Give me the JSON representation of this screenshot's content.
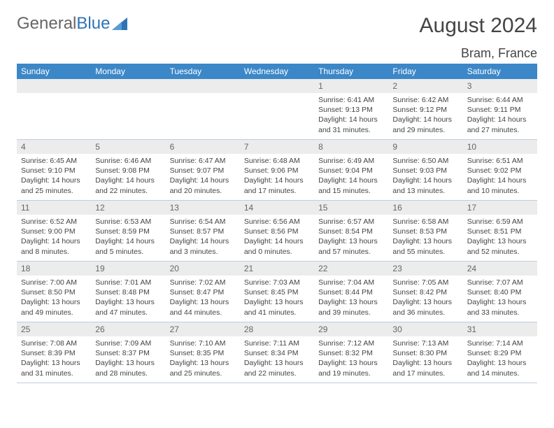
{
  "brand": {
    "part1": "General",
    "part2": "Blue",
    "tri_color": "#2e74b5"
  },
  "title": "August 2024",
  "location": "Bram, France",
  "colors": {
    "header_bg": "#3b87c8",
    "daynum_bg": "#ececec",
    "row_border": "#bfcde0"
  },
  "weekdays": [
    "Sunday",
    "Monday",
    "Tuesday",
    "Wednesday",
    "Thursday",
    "Friday",
    "Saturday"
  ],
  "leading_blanks": 4,
  "days": [
    {
      "n": 1,
      "sr": "6:41 AM",
      "ss": "9:13 PM",
      "dl": "14 hours and 31 minutes."
    },
    {
      "n": 2,
      "sr": "6:42 AM",
      "ss": "9:12 PM",
      "dl": "14 hours and 29 minutes."
    },
    {
      "n": 3,
      "sr": "6:44 AM",
      "ss": "9:11 PM",
      "dl": "14 hours and 27 minutes."
    },
    {
      "n": 4,
      "sr": "6:45 AM",
      "ss": "9:10 PM",
      "dl": "14 hours and 25 minutes."
    },
    {
      "n": 5,
      "sr": "6:46 AM",
      "ss": "9:08 PM",
      "dl": "14 hours and 22 minutes."
    },
    {
      "n": 6,
      "sr": "6:47 AM",
      "ss": "9:07 PM",
      "dl": "14 hours and 20 minutes."
    },
    {
      "n": 7,
      "sr": "6:48 AM",
      "ss": "9:06 PM",
      "dl": "14 hours and 17 minutes."
    },
    {
      "n": 8,
      "sr": "6:49 AM",
      "ss": "9:04 PM",
      "dl": "14 hours and 15 minutes."
    },
    {
      "n": 9,
      "sr": "6:50 AM",
      "ss": "9:03 PM",
      "dl": "14 hours and 13 minutes."
    },
    {
      "n": 10,
      "sr": "6:51 AM",
      "ss": "9:02 PM",
      "dl": "14 hours and 10 minutes."
    },
    {
      "n": 11,
      "sr": "6:52 AM",
      "ss": "9:00 PM",
      "dl": "14 hours and 8 minutes."
    },
    {
      "n": 12,
      "sr": "6:53 AM",
      "ss": "8:59 PM",
      "dl": "14 hours and 5 minutes."
    },
    {
      "n": 13,
      "sr": "6:54 AM",
      "ss": "8:57 PM",
      "dl": "14 hours and 3 minutes."
    },
    {
      "n": 14,
      "sr": "6:56 AM",
      "ss": "8:56 PM",
      "dl": "14 hours and 0 minutes."
    },
    {
      "n": 15,
      "sr": "6:57 AM",
      "ss": "8:54 PM",
      "dl": "13 hours and 57 minutes."
    },
    {
      "n": 16,
      "sr": "6:58 AM",
      "ss": "8:53 PM",
      "dl": "13 hours and 55 minutes."
    },
    {
      "n": 17,
      "sr": "6:59 AM",
      "ss": "8:51 PM",
      "dl": "13 hours and 52 minutes."
    },
    {
      "n": 18,
      "sr": "7:00 AM",
      "ss": "8:50 PM",
      "dl": "13 hours and 49 minutes."
    },
    {
      "n": 19,
      "sr": "7:01 AM",
      "ss": "8:48 PM",
      "dl": "13 hours and 47 minutes."
    },
    {
      "n": 20,
      "sr": "7:02 AM",
      "ss": "8:47 PM",
      "dl": "13 hours and 44 minutes."
    },
    {
      "n": 21,
      "sr": "7:03 AM",
      "ss": "8:45 PM",
      "dl": "13 hours and 41 minutes."
    },
    {
      "n": 22,
      "sr": "7:04 AM",
      "ss": "8:44 PM",
      "dl": "13 hours and 39 minutes."
    },
    {
      "n": 23,
      "sr": "7:05 AM",
      "ss": "8:42 PM",
      "dl": "13 hours and 36 minutes."
    },
    {
      "n": 24,
      "sr": "7:07 AM",
      "ss": "8:40 PM",
      "dl": "13 hours and 33 minutes."
    },
    {
      "n": 25,
      "sr": "7:08 AM",
      "ss": "8:39 PM",
      "dl": "13 hours and 31 minutes."
    },
    {
      "n": 26,
      "sr": "7:09 AM",
      "ss": "8:37 PM",
      "dl": "13 hours and 28 minutes."
    },
    {
      "n": 27,
      "sr": "7:10 AM",
      "ss": "8:35 PM",
      "dl": "13 hours and 25 minutes."
    },
    {
      "n": 28,
      "sr": "7:11 AM",
      "ss": "8:34 PM",
      "dl": "13 hours and 22 minutes."
    },
    {
      "n": 29,
      "sr": "7:12 AM",
      "ss": "8:32 PM",
      "dl": "13 hours and 19 minutes."
    },
    {
      "n": 30,
      "sr": "7:13 AM",
      "ss": "8:30 PM",
      "dl": "13 hours and 17 minutes."
    },
    {
      "n": 31,
      "sr": "7:14 AM",
      "ss": "8:29 PM",
      "dl": "13 hours and 14 minutes."
    }
  ],
  "labels": {
    "sunrise": "Sunrise:",
    "sunset": "Sunset:",
    "daylight": "Daylight:"
  }
}
